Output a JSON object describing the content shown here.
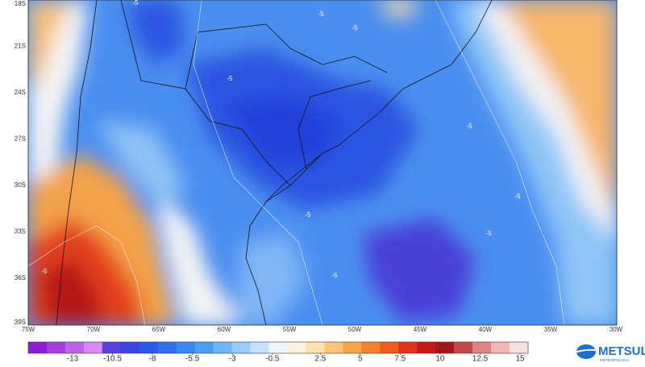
{
  "map": {
    "latitude_labels": [
      "18S",
      "21S",
      "24S",
      "27S",
      "30S",
      "33S",
      "36S",
      "39S"
    ],
    "longitude_labels": [
      "75W",
      "70W",
      "65W",
      "60W",
      "55W",
      "50W",
      "45W",
      "40W",
      "35W",
      "30W"
    ],
    "contour_labels": [
      "-5",
      "-5",
      "-5",
      "-5",
      "-5",
      "-5",
      "-5",
      "-5",
      "-5",
      "-5"
    ],
    "colorbar": {
      "ticks": [
        -13,
        -10.5,
        -8,
        -5.5,
        -3,
        -0.5,
        2.5,
        5,
        7.5,
        10,
        12.5,
        15
      ],
      "colors": [
        "#8a1fd6",
        "#a53fe0",
        "#c062ea",
        "#d88af2",
        "#5a3fe0",
        "#3b46e6",
        "#2c5ae8",
        "#2f6ff0",
        "#3a86f3",
        "#4c9df6",
        "#6fb6f8",
        "#99cdf9",
        "#c4e2fb",
        "#eef6fd",
        "#fff3dc",
        "#fde2b0",
        "#fcc57a",
        "#f9a448",
        "#f4822a",
        "#ee5c1e",
        "#e2331a",
        "#c81717",
        "#a51616",
        "#c44a4a",
        "#dd8585",
        "#f0b8b8",
        "#f9e0e0"
      ]
    },
    "logo": {
      "name": "METSUL",
      "subtitle": "METEOROLOGIA"
    }
  }
}
